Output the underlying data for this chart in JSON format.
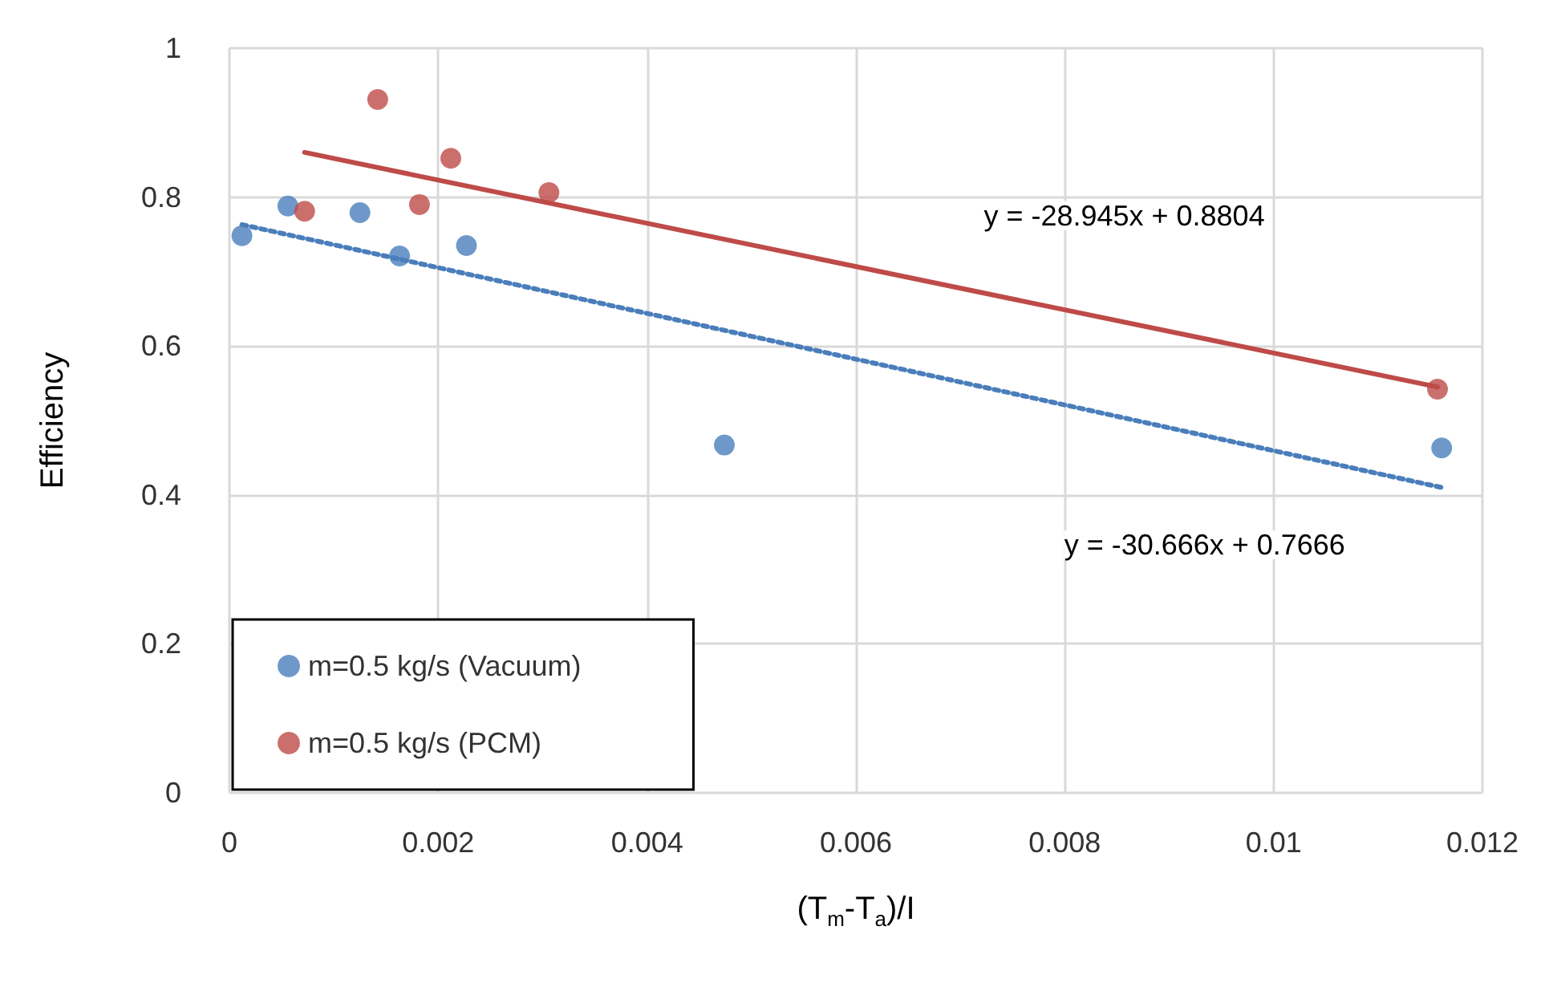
{
  "chart_data": {
    "type": "scatter",
    "xlabel": "(T$_{m}$-T$_{a}$)/I",
    "ylabel": "Efficiency",
    "xlim": [
      0,
      0.012
    ],
    "xticks": [
      0,
      0.002,
      0.004,
      0.006,
      0.008,
      0.01,
      0.012
    ],
    "ylim": [
      0,
      1
    ],
    "yticks": [
      0,
      0.2,
      0.4,
      0.6,
      0.8,
      1
    ],
    "grid": true,
    "legend": "bottom left",
    "series": [
      {
        "name": "m=0.5 kg/s (Vacuum)",
        "marker": "circle",
        "color": "#4a7ebb",
        "x": [
          0.00012,
          0.00056,
          0.00125,
          0.00163,
          0.00227,
          0.00474,
          0.01161
        ],
        "values": [
          0.748,
          0.788,
          0.779,
          0.721,
          0.735,
          0.467,
          0.463
        ]
      },
      {
        "name": "m=0.5 kg/s (PCM)",
        "marker": "circle",
        "color": "#be4b48",
        "x": [
          0.00072,
          0.00142,
          0.00182,
          0.00212,
          0.00306,
          0.01157
        ],
        "values": [
          0.781,
          0.931,
          0.79,
          0.852,
          0.806,
          0.542
        ]
      },
      {
        "type": "line",
        "line_style": "solid",
        "color": "#be4b48",
        "x": [
          0.00072,
          0.01157
        ],
        "values": [
          0.86,
          0.545
        ]
      },
      {
        "type": "line",
        "line_style": "dotted",
        "color": "#4a7ebb",
        "x": [
          0.00012,
          0.01161
        ],
        "values": [
          0.763,
          0.41
        ]
      }
    ],
    "annotations": [
      "y = -28.945x + 0.8804",
      "y = -30.666x + 0.7666"
    ]
  }
}
